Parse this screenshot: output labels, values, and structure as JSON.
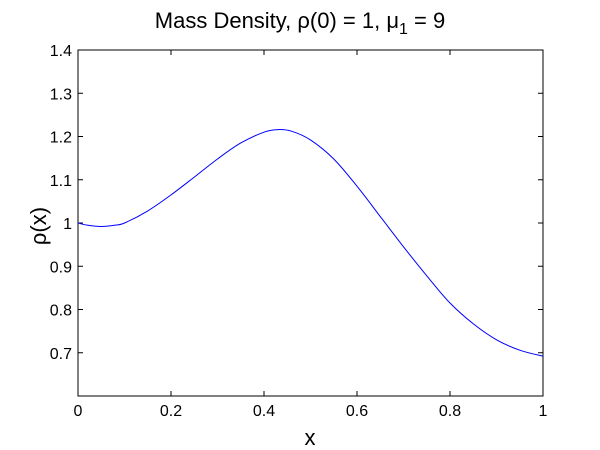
{
  "chart_data": {
    "type": "line",
    "title_parts": {
      "prefix": "Mass Density, ",
      "rho_symbol": "ρ",
      "rho_args": "(0) = 1, ",
      "mu_symbol": "μ",
      "mu_subscript": "1",
      "mu_suffix": " = 9"
    },
    "xlabel": "x",
    "ylabel_parts": {
      "rho_symbol": "ρ",
      "suffix": "(x)"
    },
    "xlim": [
      0,
      1
    ],
    "ylim": [
      0.6,
      1.4
    ],
    "xticks": [
      0,
      0.2,
      0.4,
      0.6,
      0.8,
      1
    ],
    "xtick_labels": [
      "0",
      "0.2",
      "0.4",
      "0.6",
      "0.8",
      "1"
    ],
    "yticks": [
      0.7,
      0.8,
      0.9,
      1.0,
      1.1,
      1.2,
      1.3,
      1.4
    ],
    "ytick_labels": [
      "0.7",
      "0.8",
      "0.9",
      "1",
      "1.1",
      "1.2",
      "1.3",
      "1.4"
    ],
    "grid": false,
    "series": [
      {
        "color": "#0000ff",
        "x": [
          0,
          0.02,
          0.05,
          0.08,
          0.1,
          0.15,
          0.2,
          0.25,
          0.3,
          0.35,
          0.4,
          0.43,
          0.46,
          0.5,
          0.55,
          0.6,
          0.65,
          0.7,
          0.75,
          0.8,
          0.85,
          0.9,
          0.95,
          1.0
        ],
        "y": [
          1.0,
          0.995,
          0.992,
          0.995,
          1.0,
          1.028,
          1.065,
          1.106,
          1.148,
          1.185,
          1.21,
          1.216,
          1.212,
          1.192,
          1.148,
          1.085,
          1.015,
          0.945,
          0.878,
          0.815,
          0.767,
          0.73,
          0.706,
          0.692
        ]
      }
    ]
  }
}
